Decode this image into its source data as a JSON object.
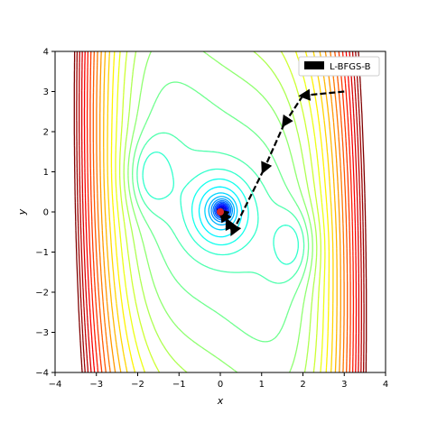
{
  "chart_data": {
    "type": "contour",
    "xlabel": "x",
    "ylabel": "y",
    "xlim": [
      -4,
      4
    ],
    "ylim": [
      -4,
      4
    ],
    "x_ticks": [
      "−4",
      "−3",
      "−2",
      "−1",
      "0",
      "1",
      "2",
      "3",
      "4"
    ],
    "y_ticks": [
      "−4",
      "−3",
      "−2",
      "−1",
      "0",
      "1",
      "2",
      "3",
      "4"
    ],
    "grid": false,
    "legend_position": "top-right",
    "colormap": "jet",
    "contour_function": "three-well surface: global minimum near (0, 0), local minima near (-1.7, 0.9) and (1.75, -0.8), steep walls toward x = ±4",
    "series": [
      {
        "name": "L-BFGS-B",
        "color": "#000000",
        "path": [
          [
            3.0,
            3.0
          ],
          [
            2.0,
            2.9
          ],
          [
            1.55,
            2.2
          ],
          [
            1.05,
            1.05
          ],
          [
            0.3,
            -0.5
          ],
          [
            0.18,
            -0.25
          ],
          [
            0.06,
            -0.05
          ],
          [
            0.0,
            0.0
          ]
        ]
      }
    ],
    "minimum_marker": {
      "x": 0.0,
      "y": 0.0,
      "color": "#d62728"
    }
  }
}
